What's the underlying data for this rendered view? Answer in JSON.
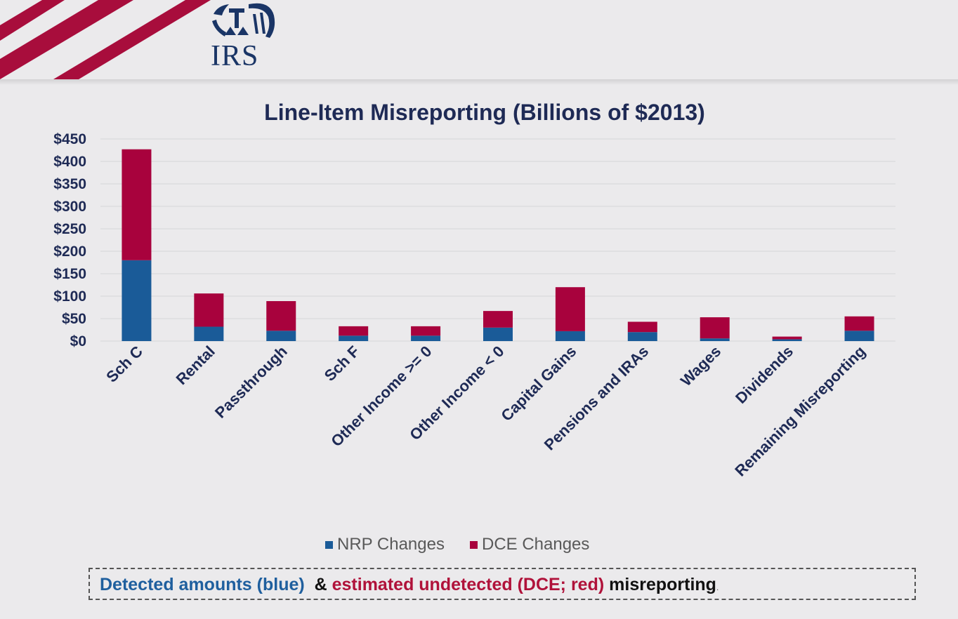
{
  "header": {
    "logo_text": "IRS",
    "logo_icon": "irs-eagle-icon",
    "colors": {
      "stripe": "#a80d3c",
      "logo": "#1a3566"
    }
  },
  "chart_data": {
    "type": "bar",
    "stacked": true,
    "title": "Line-Item Misreporting (Billions of $2013)",
    "xlabel": "",
    "ylabel": "",
    "ylim": [
      0,
      450
    ],
    "yticks": [
      0,
      50,
      100,
      150,
      200,
      250,
      300,
      350,
      400,
      450
    ],
    "ytick_labels": [
      "$0",
      "$50",
      "$100",
      "$150",
      "$200",
      "$250",
      "$300",
      "$350",
      "$400",
      "$450"
    ],
    "grid": true,
    "legend_position": "bottom",
    "categories": [
      "Sch C",
      "Rental",
      "Passthrough",
      "Sch F",
      "Other Income >= 0",
      "Other Income < 0",
      "Capital Gains",
      "Pensions and IRAs",
      "Wages",
      "Dividends",
      "Remaining Misreporting"
    ],
    "series": [
      {
        "name": "NRP Changes",
        "color": "#1a5b98",
        "values": [
          180,
          32,
          23,
          12,
          12,
          30,
          22,
          20,
          6,
          4,
          23
        ]
      },
      {
        "name": "DCE Changes",
        "color": "#a8023d",
        "values": [
          247,
          74,
          66,
          21,
          21,
          37,
          98,
          23,
          47,
          6,
          32
        ]
      }
    ]
  },
  "note": {
    "part1": "Detected amounts (blue)",
    "part2": "&",
    "part3": "estimated undetected (DCE; red)",
    "part4": "misreporting",
    "part5": "."
  }
}
